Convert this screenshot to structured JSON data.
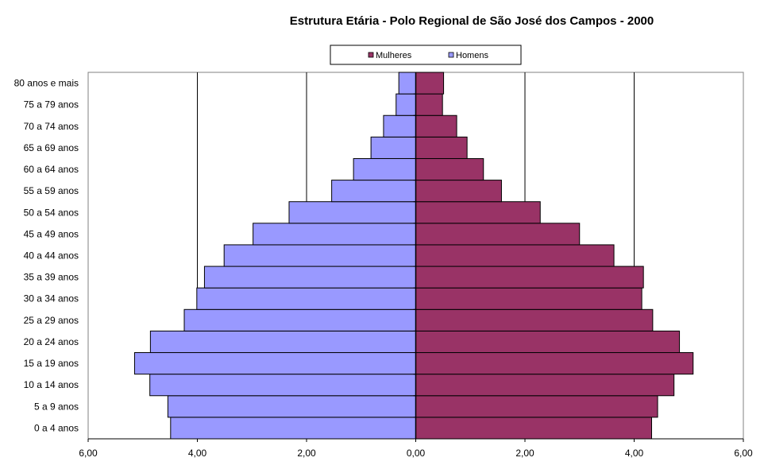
{
  "chart_data": {
    "type": "bar",
    "orientation": "horizontal",
    "title": "Estrutura Etária - Polo Regional de São José dos Campos - 2000",
    "categories": [
      "0 a 4 anos",
      "5 a 9 anos",
      "10 a 14 anos",
      "15 a 19 anos",
      "20 a 24 anos",
      "25 a 29 anos",
      "30 a 34 anos",
      "35 a 39 anos",
      "40 a 44 anos",
      "45 a 49 anos",
      "50 a 54 anos",
      "55 a 59 anos",
      "60 a 64 anos",
      "65 a 69 anos",
      "70 a 74 anos",
      "75 a 79 anos",
      "80 anos e mais"
    ],
    "series": [
      {
        "name": "Mulheres",
        "color": "#993366",
        "side": "right",
        "values": [
          4.32,
          4.43,
          4.73,
          5.08,
          4.83,
          4.34,
          4.14,
          4.17,
          3.63,
          3.0,
          2.28,
          1.57,
          1.24,
          0.94,
          0.75,
          0.49,
          0.51
        ]
      },
      {
        "name": "Homens",
        "color": "#9999ff",
        "side": "left",
        "values": [
          4.49,
          4.54,
          4.87,
          5.15,
          4.86,
          4.24,
          4.01,
          3.87,
          3.51,
          2.98,
          2.32,
          1.54,
          1.14,
          0.82,
          0.59,
          0.36,
          0.31
        ]
      }
    ],
    "xlim": [
      -6,
      6
    ],
    "xticks": [
      -6,
      -4,
      -2,
      0,
      2,
      4,
      6
    ],
    "xtick_labels": [
      "6,00",
      "4,00",
      "2,00",
      "0,00",
      "2,00",
      "4,00",
      "6,00"
    ],
    "grid": "vertical major",
    "legend": "top"
  }
}
